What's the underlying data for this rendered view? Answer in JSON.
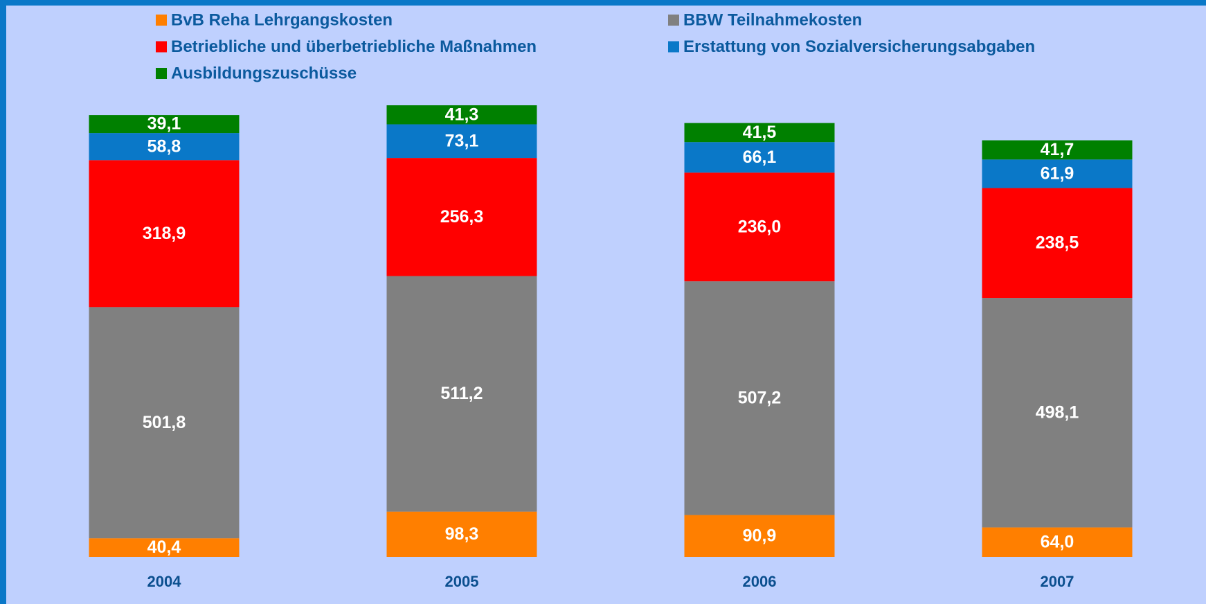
{
  "chart_data": {
    "type": "stacked-bar",
    "categories": [
      "2004",
      "2005",
      "2006",
      "2007"
    ],
    "series": [
      {
        "name": "BvB Reha Lehrgangskosten",
        "color": "#ff7f00",
        "values": [
          40.4,
          98.3,
          90.9,
          64.0
        ],
        "value_labels": [
          "40,4",
          "98,3",
          "90,9",
          "64,0"
        ]
      },
      {
        "name": "BBW Teilnahmekosten",
        "color": "#808080",
        "values": [
          501.8,
          511.2,
          507.2,
          498.1
        ],
        "value_labels": [
          "501,8",
          "511,2",
          "507,2",
          "498,1"
        ]
      },
      {
        "name": "Betriebliche und überbetriebliche Maßnahmen",
        "color": "#ff0000",
        "values": [
          318.9,
          256.3,
          236.0,
          238.5
        ],
        "value_labels": [
          "318,9",
          "256,3",
          "236,0",
          "238,5"
        ]
      },
      {
        "name": "Erstattung von Sozialversicherungsabgaben",
        "color": "#0a78c8",
        "values": [
          58.8,
          73.1,
          66.1,
          61.9
        ],
        "value_labels": [
          "58,8",
          "73,1",
          "66,1",
          "61,9"
        ]
      },
      {
        "name": "Ausbildungszuschüsse",
        "color": "#008000",
        "values": [
          39.1,
          41.3,
          41.5,
          41.7
        ],
        "value_labels": [
          "39,1",
          "41,3",
          "41,5",
          "41,7"
        ]
      }
    ]
  }
}
